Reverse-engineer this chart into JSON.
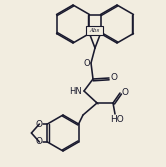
{
  "bg_color": "#f2ede0",
  "line_color": "#1a1a2e",
  "line_width": 1.15,
  "figsize": [
    1.66,
    1.67
  ],
  "dpi": 100,
  "xlim": [
    0,
    166
  ],
  "ylim": [
    0,
    167
  ]
}
